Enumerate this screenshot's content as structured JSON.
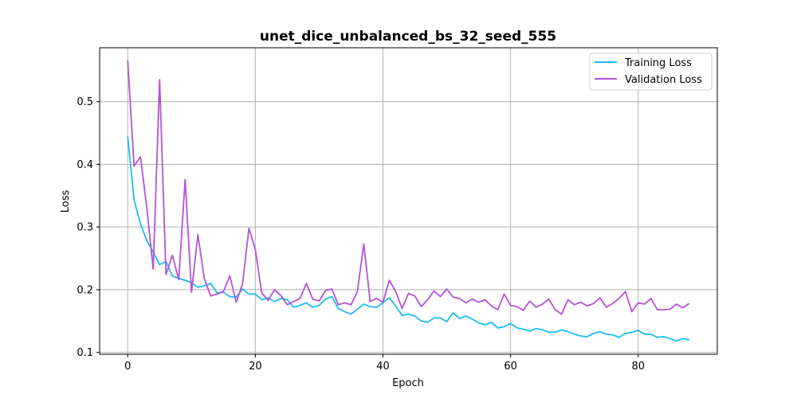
{
  "chart_data": {
    "type": "line",
    "title": "unet_dice_unbalanced_bs_32_seed_555",
    "xlabel": "Epoch",
    "ylabel": "Loss",
    "xlim": [
      -4.4,
      92.4
    ],
    "ylim": [
      0.097,
      0.586
    ],
    "xticks": [
      0,
      20,
      40,
      60,
      80
    ],
    "yticks": [
      0.1,
      0.2,
      0.3,
      0.4,
      0.5
    ],
    "xtick_labels": [
      "0",
      "20",
      "40",
      "60",
      "80"
    ],
    "ytick_labels": [
      "0.1",
      "0.2",
      "0.3",
      "0.4",
      "0.5"
    ],
    "grid": true,
    "legend_position": "top-right",
    "colors": {
      "training": "#1cbcf0",
      "validation": "#b452d8",
      "grid": "#b0b0b0"
    },
    "series": [
      {
        "name": "Training Loss",
        "x": [
          0,
          1,
          2,
          3,
          4,
          5,
          6,
          7,
          8,
          9,
          10,
          11,
          12,
          13,
          14,
          15,
          16,
          17,
          18,
          19,
          20,
          21,
          22,
          23,
          24,
          25,
          26,
          27,
          28,
          29,
          30,
          31,
          32,
          33,
          34,
          35,
          36,
          37,
          38,
          39,
          40,
          41,
          42,
          43,
          44,
          45,
          46,
          47,
          48,
          49,
          50,
          51,
          52,
          53,
          54,
          55,
          56,
          57,
          58,
          59,
          60,
          61,
          62,
          63,
          64,
          65,
          66,
          67,
          68,
          69,
          70,
          71,
          72,
          73,
          74,
          75,
          76,
          77,
          78,
          79,
          80,
          81,
          82,
          83,
          84,
          85,
          86,
          87,
          88
        ],
        "values": [
          0.445,
          0.343,
          0.305,
          0.278,
          0.26,
          0.24,
          0.245,
          0.222,
          0.218,
          0.215,
          0.211,
          0.204,
          0.206,
          0.21,
          0.195,
          0.196,
          0.189,
          0.188,
          0.201,
          0.193,
          0.193,
          0.184,
          0.187,
          0.181,
          0.186,
          0.184,
          0.172,
          0.175,
          0.179,
          0.172,
          0.175,
          0.185,
          0.189,
          0.17,
          0.165,
          0.161,
          0.169,
          0.177,
          0.173,
          0.172,
          0.179,
          0.187,
          0.174,
          0.159,
          0.161,
          0.158,
          0.15,
          0.148,
          0.155,
          0.155,
          0.149,
          0.163,
          0.154,
          0.158,
          0.153,
          0.147,
          0.144,
          0.148,
          0.139,
          0.141,
          0.146,
          0.139,
          0.137,
          0.134,
          0.138,
          0.136,
          0.132,
          0.132,
          0.136,
          0.133,
          0.129,
          0.126,
          0.125,
          0.13,
          0.133,
          0.129,
          0.128,
          0.124,
          0.13,
          0.132,
          0.135,
          0.129,
          0.129,
          0.124,
          0.125,
          0.122,
          0.118,
          0.122,
          0.12
        ]
      },
      {
        "name": "Validation Loss",
        "x": [
          0,
          1,
          2,
          3,
          4,
          5,
          6,
          7,
          8,
          9,
          10,
          11,
          12,
          13,
          14,
          15,
          16,
          17,
          18,
          19,
          20,
          21,
          22,
          23,
          24,
          25,
          26,
          27,
          28,
          29,
          30,
          31,
          32,
          33,
          34,
          35,
          36,
          37,
          38,
          39,
          40,
          41,
          42,
          43,
          44,
          45,
          46,
          47,
          48,
          49,
          50,
          51,
          52,
          53,
          54,
          55,
          56,
          57,
          58,
          59,
          60,
          61,
          62,
          63,
          64,
          65,
          66,
          67,
          68,
          69,
          70,
          71,
          72,
          73,
          74,
          75,
          76,
          77,
          78,
          79,
          80,
          81,
          82,
          83,
          84,
          85,
          86,
          87,
          88
        ],
        "values": [
          0.566,
          0.397,
          0.412,
          0.33,
          0.233,
          0.535,
          0.224,
          0.255,
          0.216,
          0.376,
          0.196,
          0.288,
          0.218,
          0.19,
          0.193,
          0.197,
          0.222,
          0.18,
          0.209,
          0.298,
          0.264,
          0.195,
          0.183,
          0.2,
          0.191,
          0.176,
          0.181,
          0.186,
          0.21,
          0.185,
          0.182,
          0.199,
          0.201,
          0.176,
          0.179,
          0.176,
          0.197,
          0.273,
          0.181,
          0.186,
          0.18,
          0.215,
          0.197,
          0.17,
          0.194,
          0.19,
          0.173,
          0.184,
          0.198,
          0.189,
          0.201,
          0.188,
          0.186,
          0.179,
          0.185,
          0.18,
          0.184,
          0.174,
          0.168,
          0.193,
          0.175,
          0.173,
          0.167,
          0.182,
          0.172,
          0.177,
          0.185,
          0.168,
          0.161,
          0.184,
          0.176,
          0.18,
          0.174,
          0.178,
          0.187,
          0.172,
          0.178,
          0.186,
          0.197,
          0.165,
          0.179,
          0.177,
          0.186,
          0.168,
          0.168,
          0.169,
          0.177,
          0.171,
          0.178
        ]
      }
    ]
  }
}
